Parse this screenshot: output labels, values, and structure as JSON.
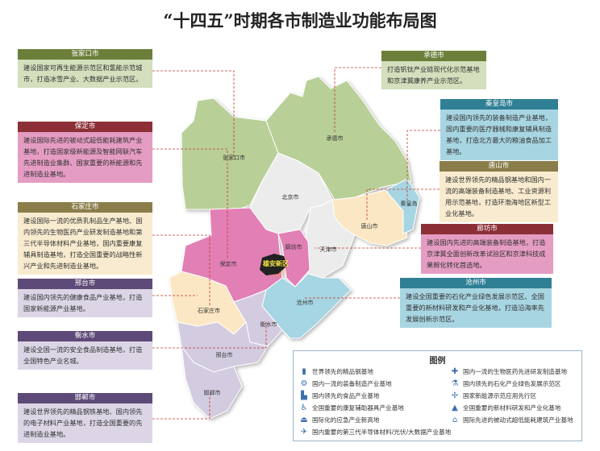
{
  "title": "“十四五”时期各市制造业功能布局图",
  "colors": {
    "green": "#b9cf98",
    "pink": "#e27fb5",
    "cream": "#fbe7c3",
    "blue": "#a6d5e3",
    "white": "#ececec",
    "lavender": "#d3cbe0",
    "xiongan": "#222222",
    "connector": "#c0392b"
  },
  "map_labels": {
    "zhangjiakou": "张家口市",
    "chengde": "承德市",
    "beijing": "北京市",
    "qinhuangdao": "秦皇岛",
    "tangshan": "唐山市",
    "langfang": "廊坊市",
    "tianjin": "天津市",
    "xiongan": "雄安新区",
    "baoding": "保定市",
    "cangzhou": "沧州市",
    "shijiazhuang": "石家庄市",
    "hengshui": "衡水市",
    "xingtai": "邢台市",
    "handan": "邯郸市"
  },
  "boxes": {
    "zhangjiakou": {
      "name": "张家口市",
      "text": "建设国家可再生能源示范区和氢能示范城市，打造冰雪产业、大数据产业示范区。"
    },
    "baoding": {
      "name": "保定市",
      "text": "建设国际先进的被动式超低能耗建筑产业基地，打造国家级新能源及智能网联汽车先进制造业集群、国家重要的新能源和先进制造业基地。"
    },
    "shijiazhuang": {
      "name": "石家庄市",
      "text": "建设国际一流的优质乳制品生产基地、国内领先的生物医药产业研发制造基地和第三代半导体材料产业基地，国内重要康复辅具制造基地，打造全国重要的战略性新兴产业和先进制造业基地。"
    },
    "xingtai": {
      "name": "邢台市",
      "text": "建设国内领先的健康食品产业基地，打造国家新能源产业基地。"
    },
    "hengshui": {
      "name": "衡水市",
      "text": "建设全国一流的安全食品制造基地，打造全国特色产业名城。"
    },
    "handan": {
      "name": "邯郸市",
      "text": "建设世界领先的精品钢铁基地、国内领先的电子材料产业基地，打造全国重要的先进制造业基地。"
    },
    "chengde": {
      "name": "承德市",
      "text": "打造钒钛产业链现代化示范基地和京津冀康养产业示范区。"
    },
    "qinhuangdao": {
      "name": "秦皇岛市",
      "text": "建设国内领先的装备制造产业基地，国内重要的医疗器械和康复辅具制造基地，打造北方最大的粮油食品加工基地。"
    },
    "tangshan": {
      "name": "唐山市",
      "text": "建设世界领先的精品钢基地和国内一流的高端装备制造基地、工业资源利用示范基地，打造环渤海地区新型工业化基地。"
    },
    "langfang": {
      "name": "廊坊市",
      "text": "建设国内先进的高端装备制造基地，打造京津冀全面创新改革试验区和京津科技成果孵化转化首选地。"
    },
    "cangzhou": {
      "name": "沧州市",
      "text": "建设全国重要的石化产业绿色发展示范区、全国重要的新材料研发和产业化基地，打造沿海率先发展创新示范区。"
    }
  },
  "legend": {
    "title": "图例",
    "items": [
      {
        "icon": "steel-icon",
        "glyph": "▮",
        "label": "世界领先的精品钢基地"
      },
      {
        "icon": "gear-icon",
        "glyph": "⚙",
        "label": "国内一流的装备制造产业基地"
      },
      {
        "icon": "factory-icon",
        "glyph": "▙",
        "label": "国内领先的食品产业基地"
      },
      {
        "icon": "wheelchair-icon",
        "glyph": "♿",
        "label": "全国重要的康复辅助器具产业基地"
      },
      {
        "icon": "alarm-icon",
        "glyph": "⏏",
        "label": "国际化的应急产业新高地"
      },
      {
        "icon": "satellite-icon",
        "glyph": "✈",
        "label": "国内重要的第三代半导体材料/光伏/大数据产业基地"
      },
      {
        "icon": "medicine-icon",
        "glyph": "✚",
        "label": "国内一流的生物医药先进研发制造基地"
      },
      {
        "icon": "flask-icon",
        "glyph": "⚗",
        "label": "国内领先的石化产业绿色发展示范区"
      },
      {
        "icon": "wind-turbine-icon",
        "glyph": "✢",
        "label": "国家新能源示范应用先行区"
      },
      {
        "icon": "bottle-icon",
        "glyph": "▲",
        "label": "全国重要的新材料研发和产业化基地"
      },
      {
        "icon": "house-icon",
        "glyph": "⌂",
        "label": "国际先进的被动式超低能耗建筑产业基地"
      }
    ]
  }
}
